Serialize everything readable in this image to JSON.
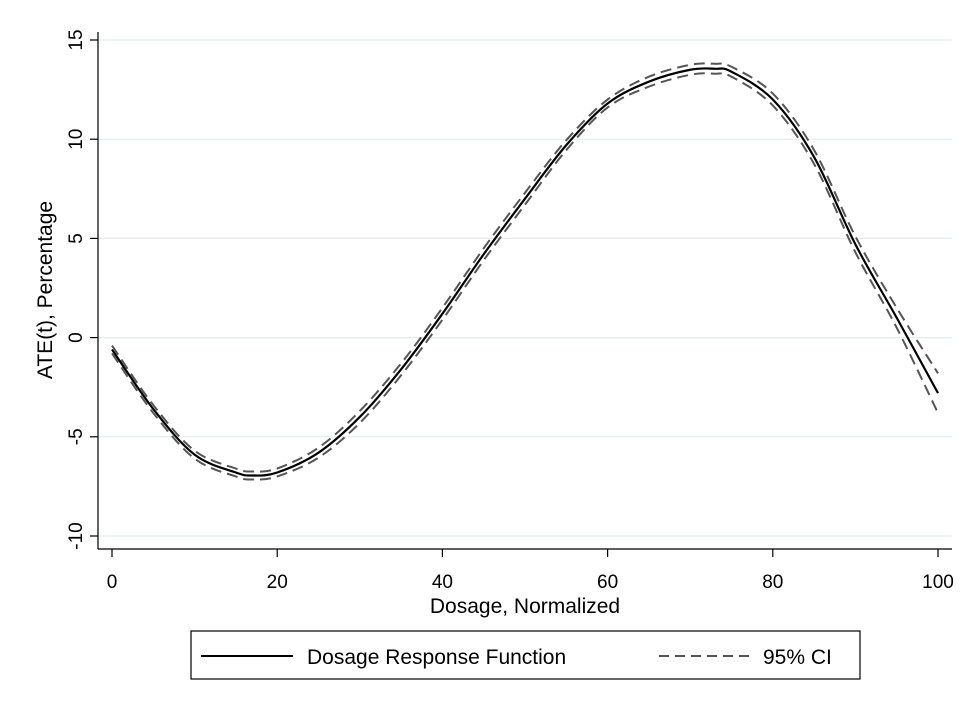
{
  "chart_data": {
    "type": "line",
    "xlabel": "Dosage, Normalized",
    "ylabel": "ATE(t), Percentage",
    "xlim": [
      0,
      100
    ],
    "ylim": [
      -10,
      15
    ],
    "xticks": [
      "0",
      "20",
      "40",
      "60",
      "80",
      "100"
    ],
    "yticks": [
      "15",
      "10",
      "5",
      "0",
      "-5",
      "-10"
    ],
    "grid": "horizontal",
    "legend_position": "bottom",
    "series": [
      {
        "name": "Dosage Response Function",
        "style": "solid",
        "color": "#000000",
        "x": [
          0,
          5,
          10,
          15,
          17,
          20,
          25,
          30,
          35,
          40,
          45,
          50,
          55,
          60,
          65,
          70,
          73,
          75,
          80,
          85,
          90,
          95,
          100
        ],
        "y": [
          -0.6,
          -3.6,
          -5.9,
          -6.8,
          -6.95,
          -6.8,
          -5.8,
          -4.0,
          -1.6,
          1.2,
          4.2,
          7.0,
          9.7,
          11.8,
          12.9,
          13.5,
          13.55,
          13.4,
          12.0,
          9.1,
          4.7,
          1.0,
          -2.8
        ]
      },
      {
        "name": "95% CI",
        "style": "dashed",
        "color": "#555555",
        "x": [
          0,
          5,
          10,
          15,
          17,
          20,
          25,
          30,
          35,
          40,
          45,
          50,
          55,
          60,
          65,
          70,
          73,
          75,
          80,
          85,
          90,
          95,
          100
        ],
        "y": [
          -0.4,
          -3.4,
          -5.7,
          -6.6,
          -6.75,
          -6.6,
          -5.55,
          -3.7,
          -1.3,
          1.5,
          4.5,
          7.3,
          9.95,
          12.0,
          13.15,
          13.75,
          13.8,
          13.65,
          12.3,
          9.45,
          5.1,
          1.5,
          -1.8
        ]
      },
      {
        "name": "95% CI",
        "style": "dashed",
        "color": "#555555",
        "x": [
          0,
          5,
          10,
          15,
          17,
          20,
          25,
          30,
          35,
          40,
          45,
          50,
          55,
          60,
          65,
          70,
          73,
          75,
          80,
          85,
          90,
          95,
          100
        ],
        "y": [
          -0.8,
          -3.8,
          -6.1,
          -7.0,
          -7.15,
          -7.0,
          -6.05,
          -4.3,
          -1.9,
          0.9,
          3.9,
          6.7,
          9.45,
          11.6,
          12.65,
          13.25,
          13.3,
          13.15,
          11.7,
          8.75,
          4.3,
          0.5,
          -3.8
        ]
      }
    ],
    "legend": [
      {
        "label": "Dosage Response Function",
        "style": "solid"
      },
      {
        "label": "95% CI",
        "style": "dashed"
      }
    ]
  }
}
